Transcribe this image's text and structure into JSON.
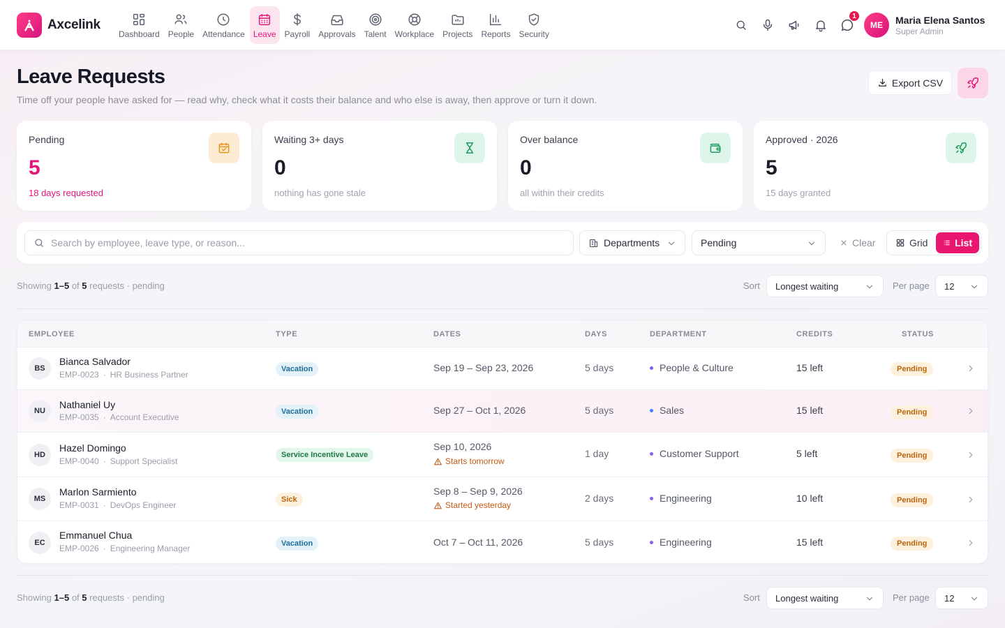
{
  "brand": {
    "name": "Axcelink"
  },
  "nav": [
    {
      "label": "Dashboard",
      "icon": "dashboard-icon"
    },
    {
      "label": "People",
      "icon": "people-icon"
    },
    {
      "label": "Attendance",
      "icon": "clock-icon"
    },
    {
      "label": "Leave",
      "icon": "calendar-icon",
      "active": true
    },
    {
      "label": "Payroll",
      "icon": "dollar-icon"
    },
    {
      "label": "Approvals",
      "icon": "inbox-icon"
    },
    {
      "label": "Talent",
      "icon": "target-icon"
    },
    {
      "label": "Workplace",
      "icon": "lifebuoy-icon"
    },
    {
      "label": "Projects",
      "icon": "folder-icon"
    },
    {
      "label": "Reports",
      "icon": "bar-chart-icon"
    },
    {
      "label": "Security",
      "icon": "shield-icon"
    }
  ],
  "topbar": {
    "notification_count": "1"
  },
  "user": {
    "initials": "ME",
    "name": "Maria Elena Santos",
    "role": "Super Admin"
  },
  "page": {
    "title": "Leave Requests",
    "subtitle": "Time off your people have asked for — read why, check what it costs their balance and who else is away, then approve or turn it down.",
    "export_label": "Export CSV"
  },
  "stats": [
    {
      "label": "Pending",
      "value": "5",
      "note": "18 days requested",
      "icon": "calendar-check-icon",
      "accent": "#e2167a",
      "icon_bg": "#fdecd3",
      "icon_color": "#e8951a"
    },
    {
      "label": "Waiting 3+ days",
      "value": "0",
      "note": "nothing has gone stale",
      "icon": "hourglass-icon",
      "accent": "#1a1c29",
      "icon_bg": "#dcf5e8",
      "icon_color": "#1f9b5a"
    },
    {
      "label": "Over balance",
      "value": "0",
      "note": "all within their credits",
      "icon": "wallet-icon",
      "accent": "#1a1c29",
      "icon_bg": "#dcf5e8",
      "icon_color": "#1f9b5a"
    },
    {
      "label": "Approved · 2026",
      "value": "5",
      "note": "15 days granted",
      "icon": "plane-icon",
      "accent": "#1a1c29",
      "icon_bg": "#dcf5e8",
      "icon_color": "#1f9b5a"
    }
  ],
  "filters": {
    "search_placeholder": "Search by employee, leave type, or reason...",
    "department_label": "Departments",
    "status_value": "Pending",
    "clear_label": "Clear",
    "grid_label": "Grid",
    "list_label": "List"
  },
  "summary": {
    "showing_prefix": "Showing",
    "range": "1–5",
    "of": "of",
    "total": "5",
    "suffix": "requests · pending",
    "sort_label": "Sort",
    "sort_value": "Longest waiting",
    "perpage_label": "Per page",
    "perpage_value": "12"
  },
  "table": {
    "columns": [
      "EMPLOYEE",
      "TYPE",
      "DATES",
      "DAYS",
      "DEPARTMENT",
      "CREDITS",
      "STATUS"
    ],
    "rows": [
      {
        "initials": "BS",
        "name": "Bianca Salvador",
        "emp_id": "EMP-0023",
        "title": "HR Business Partner",
        "type": "Vacation",
        "type_kind": "vac",
        "dates": "Sep 19 – Sep 23, 2026",
        "warning": "",
        "days": "5 days",
        "department": "People & Culture",
        "dept_color": "#8a5cf0",
        "credits": "15 left",
        "status": "Pending"
      },
      {
        "initials": "NU",
        "name": "Nathaniel Uy",
        "emp_id": "EMP-0035",
        "title": "Account Executive",
        "type": "Vacation",
        "type_kind": "vac",
        "dates": "Sep 27 – Oct 1, 2026",
        "warning": "",
        "days": "5 days",
        "department": "Sales",
        "dept_color": "#3b82f6",
        "credits": "15 left",
        "status": "Pending"
      },
      {
        "initials": "HD",
        "name": "Hazel Domingo",
        "emp_id": "EMP-0040",
        "title": "Support Specialist",
        "type": "Service Incentive Leave",
        "type_kind": "sil",
        "dates": "Sep 10, 2026",
        "warning": "Starts tomorrow",
        "days": "1 day",
        "department": "Customer Support",
        "dept_color": "#8a5cf0",
        "credits": "5 left",
        "status": "Pending"
      },
      {
        "initials": "MS",
        "name": "Marlon Sarmiento",
        "emp_id": "EMP-0031",
        "title": "DevOps Engineer",
        "type": "Sick",
        "type_kind": "sick",
        "dates": "Sep 8 – Sep 9, 2026",
        "warning": "Started yesterday",
        "days": "2 days",
        "department": "Engineering",
        "dept_color": "#8a5cf0",
        "credits": "10 left",
        "status": "Pending"
      },
      {
        "initials": "EC",
        "name": "Emmanuel Chua",
        "emp_id": "EMP-0026",
        "title": "Engineering Manager",
        "type": "Vacation",
        "type_kind": "vac",
        "dates": "Oct 7 – Oct 11, 2026",
        "warning": "",
        "days": "5 days",
        "department": "Engineering",
        "dept_color": "#8a5cf0",
        "credits": "15 left",
        "status": "Pending"
      }
    ]
  }
}
